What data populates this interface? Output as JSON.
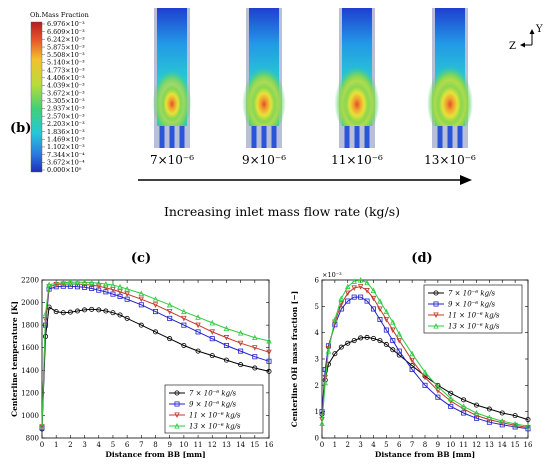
{
  "panel_b": {
    "label": "(b)",
    "colorbar": {
      "title": "Oh.Mass Fraction",
      "ticks": [
        "6.976×10⁻³",
        "6.609×10⁻³",
        "6.242×10⁻³",
        "5.875×10⁻³",
        "5.508×10⁻³",
        "5.140×10⁻³",
        "4.773×10⁻³",
        "4.406×10⁻³",
        "4.039×10⁻³",
        "3.672×10⁻³",
        "3.305×10⁻³",
        "2.937×10⁻³",
        "2.570×10⁻³",
        "2.203×10⁻³",
        "1.836×10⁻³",
        "1.469×10⁻³",
        "1.102×10⁻³",
        "7.344×10⁻⁴",
        "3.672×10⁻⁴",
        "0.000×10⁰"
      ]
    },
    "cases": [
      {
        "label": "7×10⁻⁶",
        "intensity": 0.45
      },
      {
        "label": "9×10⁻⁶",
        "intensity": 0.8
      },
      {
        "label": "11×10⁻⁶",
        "intensity": 0.92
      },
      {
        "label": "13×10⁻⁶",
        "intensity": 1.0
      }
    ],
    "arrow_label": "Increasing inlet mass flow rate (kg/s)",
    "axis_z": "Z",
    "axis_y": "Y"
  },
  "chart_data": [
    {
      "type": "line",
      "panel_label": "(c)",
      "xlabel": "Distance from BB [mm]",
      "ylabel": "Centerline temperature [K]",
      "xlim": [
        0,
        16
      ],
      "ylim": [
        800,
        2200
      ],
      "xticks": [
        0,
        1,
        2,
        3,
        4,
        5,
        6,
        7,
        8,
        9,
        10,
        11,
        12,
        13,
        14,
        15,
        16
      ],
      "yticks": [
        800,
        1000,
        1200,
        1400,
        1600,
        1800,
        2000,
        2200
      ],
      "legend_position": "bottom-right",
      "series": [
        {
          "name": "7 × 10⁻⁶ kg/s",
          "color": "#000000",
          "marker": "circle",
          "x": [
            0,
            0.25,
            0.5,
            1,
            1.5,
            2,
            2.5,
            3,
            3.5,
            4,
            4.5,
            5,
            5.5,
            6,
            7,
            8,
            9,
            10,
            11,
            12,
            13,
            14,
            15,
            16
          ],
          "y": [
            880,
            1700,
            1960,
            1920,
            1910,
            1915,
            1925,
            1935,
            1940,
            1935,
            1925,
            1910,
            1890,
            1860,
            1800,
            1740,
            1680,
            1620,
            1570,
            1530,
            1490,
            1450,
            1420,
            1390
          ]
        },
        {
          "name": "9 × 10⁻⁶ kg/s",
          "color": "#2222cc",
          "marker": "square",
          "x": [
            0,
            0.25,
            0.5,
            1,
            1.5,
            2,
            2.5,
            3,
            3.5,
            4,
            4.5,
            5,
            5.5,
            6,
            7,
            8,
            9,
            10,
            11,
            12,
            13,
            14,
            15,
            16
          ],
          "y": [
            890,
            1800,
            2120,
            2140,
            2145,
            2145,
            2140,
            2135,
            2125,
            2110,
            2095,
            2075,
            2055,
            2030,
            1980,
            1920,
            1860,
            1800,
            1740,
            1680,
            1620,
            1570,
            1520,
            1480
          ]
        },
        {
          "name": "11 × 10⁻⁶ kg/s",
          "color": "#c0392b",
          "marker": "triangle-down",
          "x": [
            0,
            0.25,
            0.5,
            1,
            1.5,
            2,
            2.5,
            3,
            3.5,
            4,
            4.5,
            5,
            5.5,
            6,
            7,
            8,
            9,
            10,
            11,
            12,
            13,
            14,
            15,
            16
          ],
          "y": [
            900,
            1850,
            2140,
            2160,
            2165,
            2165,
            2165,
            2160,
            2155,
            2145,
            2130,
            2115,
            2095,
            2075,
            2030,
            1980,
            1920,
            1860,
            1800,
            1740,
            1690,
            1640,
            1600,
            1560
          ]
        },
        {
          "name": "13 × 10⁻⁶ kg/s",
          "color": "#2ecc40",
          "marker": "triangle-up",
          "x": [
            0,
            0.25,
            0.5,
            1,
            1.5,
            2,
            2.5,
            3,
            3.5,
            4,
            4.5,
            5,
            5.5,
            6,
            7,
            8,
            9,
            10,
            11,
            12,
            13,
            14,
            15,
            16
          ],
          "y": [
            910,
            1900,
            2160,
            2170,
            2175,
            2180,
            2180,
            2180,
            2178,
            2172,
            2165,
            2155,
            2140,
            2120,
            2080,
            2030,
            1980,
            1920,
            1870,
            1820,
            1770,
            1730,
            1690,
            1660
          ]
        }
      ]
    },
    {
      "type": "line",
      "panel_label": "(d)",
      "xlabel": "Distance from BB [mm]",
      "ylabel": "Centerline OH mass fraction [−]",
      "exponent_label": "×10⁻³",
      "xlim": [
        0,
        16
      ],
      "ylim": [
        0,
        6
      ],
      "xticks": [
        0,
        1,
        2,
        3,
        4,
        5,
        6,
        7,
        8,
        9,
        10,
        11,
        12,
        13,
        14,
        15,
        16
      ],
      "yticks": [
        0,
        1,
        2,
        3,
        4,
        5,
        6
      ],
      "legend_position": "top-right",
      "series": [
        {
          "name": "7 × 10⁻⁶ kg/s",
          "color": "#000000",
          "marker": "circle",
          "x": [
            0,
            0.25,
            0.5,
            1,
            1.5,
            2,
            2.5,
            3,
            3.5,
            4,
            4.5,
            5,
            5.5,
            6,
            7,
            8,
            9,
            10,
            11,
            12,
            13,
            14,
            15,
            16
          ],
          "y": [
            0.9,
            2.2,
            2.8,
            3.2,
            3.45,
            3.6,
            3.7,
            3.8,
            3.82,
            3.78,
            3.7,
            3.55,
            3.35,
            3.15,
            2.75,
            2.35,
            2.0,
            1.7,
            1.45,
            1.25,
            1.1,
            0.95,
            0.85,
            0.7
          ]
        },
        {
          "name": "9 × 10⁻⁶ kg/s",
          "color": "#2222cc",
          "marker": "square",
          "x": [
            0,
            0.25,
            0.5,
            1,
            1.5,
            2,
            2.5,
            3,
            3.5,
            4,
            4.5,
            5,
            5.5,
            6,
            7,
            8,
            9,
            10,
            11,
            12,
            13,
            14,
            15,
            16
          ],
          "y": [
            1.0,
            2.6,
            3.5,
            4.3,
            4.9,
            5.2,
            5.35,
            5.35,
            5.2,
            4.9,
            4.5,
            4.1,
            3.7,
            3.3,
            2.6,
            2.0,
            1.55,
            1.2,
            0.95,
            0.75,
            0.6,
            0.5,
            0.42,
            0.35
          ]
        },
        {
          "name": "11 × 10⁻⁶ kg/s",
          "color": "#c0392b",
          "marker": "triangle-down",
          "x": [
            0,
            0.25,
            0.5,
            1,
            1.5,
            2,
            2.5,
            3,
            3.5,
            4,
            4.5,
            5,
            5.5,
            6,
            7,
            8,
            9,
            10,
            11,
            12,
            13,
            14,
            15,
            16
          ],
          "y": [
            0.7,
            2.3,
            3.4,
            4.4,
            5.1,
            5.5,
            5.7,
            5.75,
            5.6,
            5.3,
            4.9,
            4.5,
            4.1,
            3.7,
            2.95,
            2.3,
            1.8,
            1.4,
            1.1,
            0.85,
            0.7,
            0.58,
            0.48,
            0.4
          ]
        },
        {
          "name": "13 × 10⁻⁶ kg/s",
          "color": "#2ecc40",
          "marker": "triangle-up",
          "x": [
            0,
            0.25,
            0.5,
            1,
            1.5,
            2,
            2.5,
            3,
            3.5,
            4,
            4.5,
            5,
            5.5,
            6,
            7,
            8,
            9,
            10,
            11,
            12,
            13,
            14,
            15,
            16
          ],
          "y": [
            0.55,
            2.1,
            3.3,
            4.5,
            5.3,
            5.75,
            5.95,
            6.0,
            5.9,
            5.6,
            5.2,
            4.8,
            4.4,
            3.95,
            3.2,
            2.5,
            1.95,
            1.5,
            1.2,
            0.95,
            0.78,
            0.64,
            0.53,
            0.45
          ]
        }
      ]
    }
  ]
}
